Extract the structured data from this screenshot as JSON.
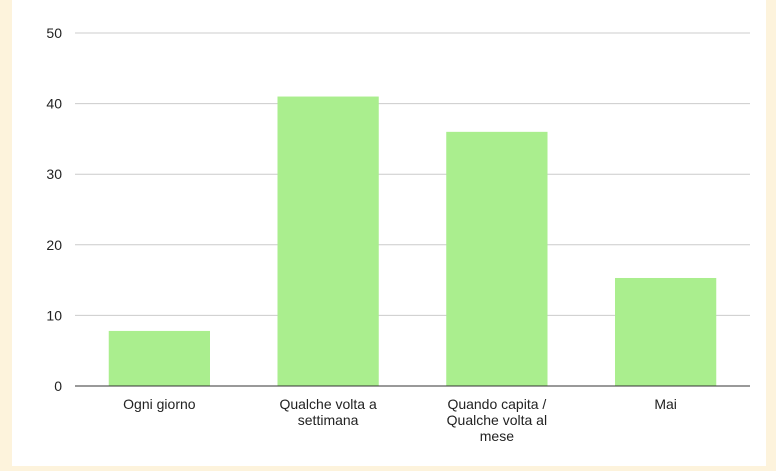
{
  "chart_data": {
    "type": "bar",
    "categories": [
      [
        "Ogni giorno"
      ],
      [
        "Qualche volta a",
        "settimana"
      ],
      [
        "Quando capita /",
        "Qualche volta al",
        "mese"
      ],
      [
        "Mai"
      ]
    ],
    "values": [
      7.8,
      41,
      36,
      15.3
    ],
    "yticks": [
      0,
      10,
      20,
      30,
      40,
      50
    ],
    "ylim": [
      0,
      50
    ],
    "grid": true,
    "legend": "none",
    "bar_color": "#aaee8e",
    "title": "",
    "xlabel": "",
    "ylabel": ""
  }
}
